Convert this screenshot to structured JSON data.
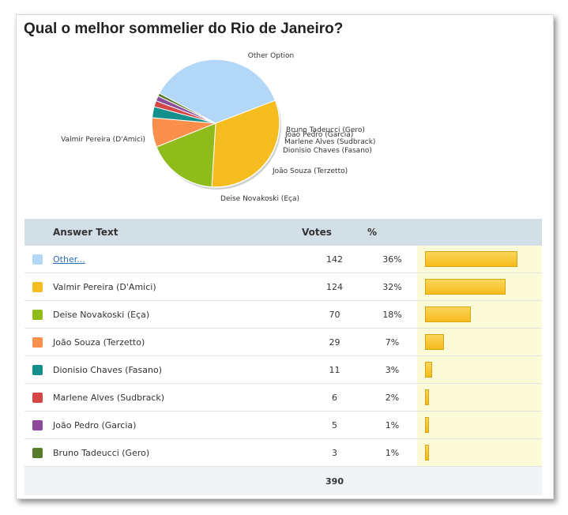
{
  "title": "Qual o melhor sommelier do Rio de Janeiro?",
  "table": {
    "headers": {
      "answer": "Answer Text",
      "votes": "Votes",
      "percent": "%"
    },
    "rows": [
      {
        "label": "Other...",
        "votes": "142",
        "percent": "36%",
        "color": "#b3d7f7",
        "link": true
      },
      {
        "label": "Valmir Pereira (D'Amici)",
        "votes": "124",
        "percent": "32%",
        "color": "#f5bd1f"
      },
      {
        "label": "Deise Novakoski (Eça)",
        "votes": "70",
        "percent": "18%",
        "color": "#8fbc1b"
      },
      {
        "label": "João Souza (Terzetto)",
        "votes": "29",
        "percent": "7%",
        "color": "#fc8f4c"
      },
      {
        "label": "Dionisio Chaves (Fasano)",
        "votes": "11",
        "percent": "3%",
        "color": "#13908c"
      },
      {
        "label": "Marlene Alves (Sudbrack)",
        "votes": "6",
        "percent": "2%",
        "color": "#d64646"
      },
      {
        "label": "João Pedro (Garcia)",
        "votes": "5",
        "percent": "1%",
        "color": "#8e4b9b"
      },
      {
        "label": "Bruno Tadeucci (Gero)",
        "votes": "3",
        "percent": "1%",
        "color": "#577c2c"
      }
    ],
    "total": "390"
  },
  "chart_data": {
    "type": "pie",
    "title": "Qual o melhor sommelier do Rio de Janeiro?",
    "labels": [
      "Other Option",
      "Valmir Pereira (D'Amici)",
      "Deise Novakoski (Eça)",
      "João Souza (Terzetto)",
      "Dionisio Chaves (Fasano)",
      "Marlene Alves (Sudbrack)",
      "João Pedro (Garcia)",
      "Bruno Tadeucci (Gero)"
    ],
    "values": [
      142,
      124,
      70,
      29,
      11,
      6,
      5,
      3
    ],
    "colors": [
      "#b3d7f7",
      "#f5bd1f",
      "#8fbc1b",
      "#fc8f4c",
      "#13908c",
      "#d64646",
      "#8e4b9b",
      "#577c2c"
    ],
    "bar_scale_max": 142
  }
}
